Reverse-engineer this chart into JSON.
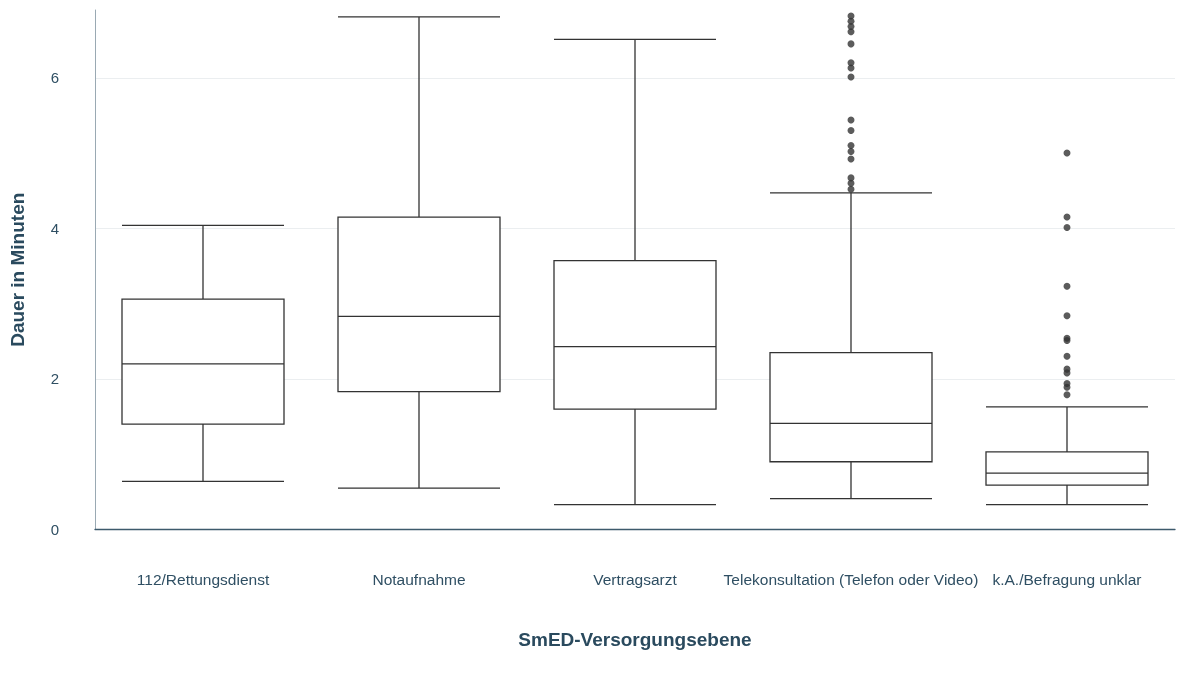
{
  "chart_data": {
    "type": "box",
    "xlabel": "SmED-Versorgungsebene",
    "ylabel": "Dauer in Minuten",
    "categories": [
      "112/Rettungsdienst",
      "Notaufnahme",
      "Vertragsarzt",
      "Telekonsultation (Telefon oder Video)",
      "k.A./Befragung unklar"
    ],
    "boxes": [
      {
        "low": 0.64,
        "q1": 1.4,
        "median": 2.2,
        "q3": 3.06,
        "high": 4.04
      },
      {
        "low": 0.55,
        "q1": 1.83,
        "median": 2.83,
        "q3": 4.15,
        "high": 6.81
      },
      {
        "low": 0.33,
        "q1": 1.6,
        "median": 2.43,
        "q3": 3.57,
        "high": 6.51
      },
      {
        "low": 0.41,
        "q1": 0.9,
        "median": 1.41,
        "q3": 2.35,
        "high": 4.47,
        "outliers": [
          6.82,
          6.75,
          6.68,
          6.61,
          6.45,
          6.2,
          6.13,
          6.01,
          5.44,
          5.3,
          5.1,
          5.02,
          4.92,
          4.67,
          4.6,
          4.52
        ]
      },
      {
        "low": 0.33,
        "q1": 0.59,
        "median": 0.75,
        "q3": 1.03,
        "high": 1.63,
        "outliers": [
          5.0,
          4.15,
          4.01,
          3.23,
          2.84,
          2.54,
          2.51,
          2.3,
          2.13,
          2.08,
          1.94,
          1.89,
          1.79
        ]
      }
    ],
    "color": "#333333",
    "ylim": [
      0,
      6.9
    ],
    "yticks": [
      0,
      2,
      4,
      6
    ],
    "grid": "y"
  }
}
